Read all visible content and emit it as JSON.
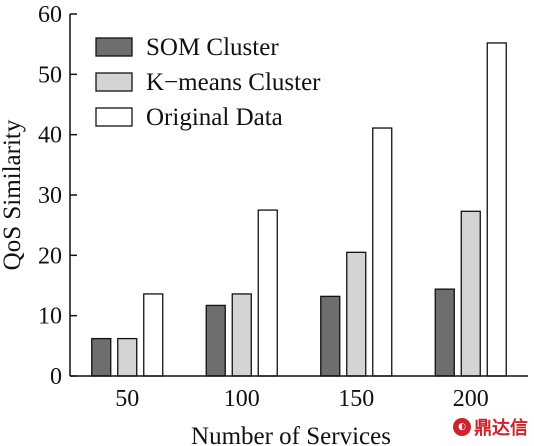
{
  "chart_data": {
    "type": "bar",
    "categories": [
      "50",
      "100",
      "150",
      "200"
    ],
    "series": [
      {
        "name": "SOM Cluster",
        "values": [
          6.2,
          11.7,
          13.2,
          14.4
        ],
        "color": "#6e6e6e"
      },
      {
        "name": "K−means Cluster",
        "values": [
          6.2,
          13.6,
          20.5,
          27.3
        ],
        "color": "#d4d4d4"
      },
      {
        "name": "Original Data",
        "values": [
          13.6,
          27.5,
          41.1,
          55.2
        ],
        "color": "#ffffff"
      }
    ],
    "xlabel": "Number of Services",
    "ylabel": "QoS Similarity",
    "ylim": [
      0,
      60
    ],
    "yticks": [
      0,
      10,
      20,
      30,
      40,
      50,
      60
    ],
    "grid": false,
    "legend": "top-left"
  },
  "watermark": {
    "text": "鼎达信",
    "icon": "logo-icon"
  }
}
